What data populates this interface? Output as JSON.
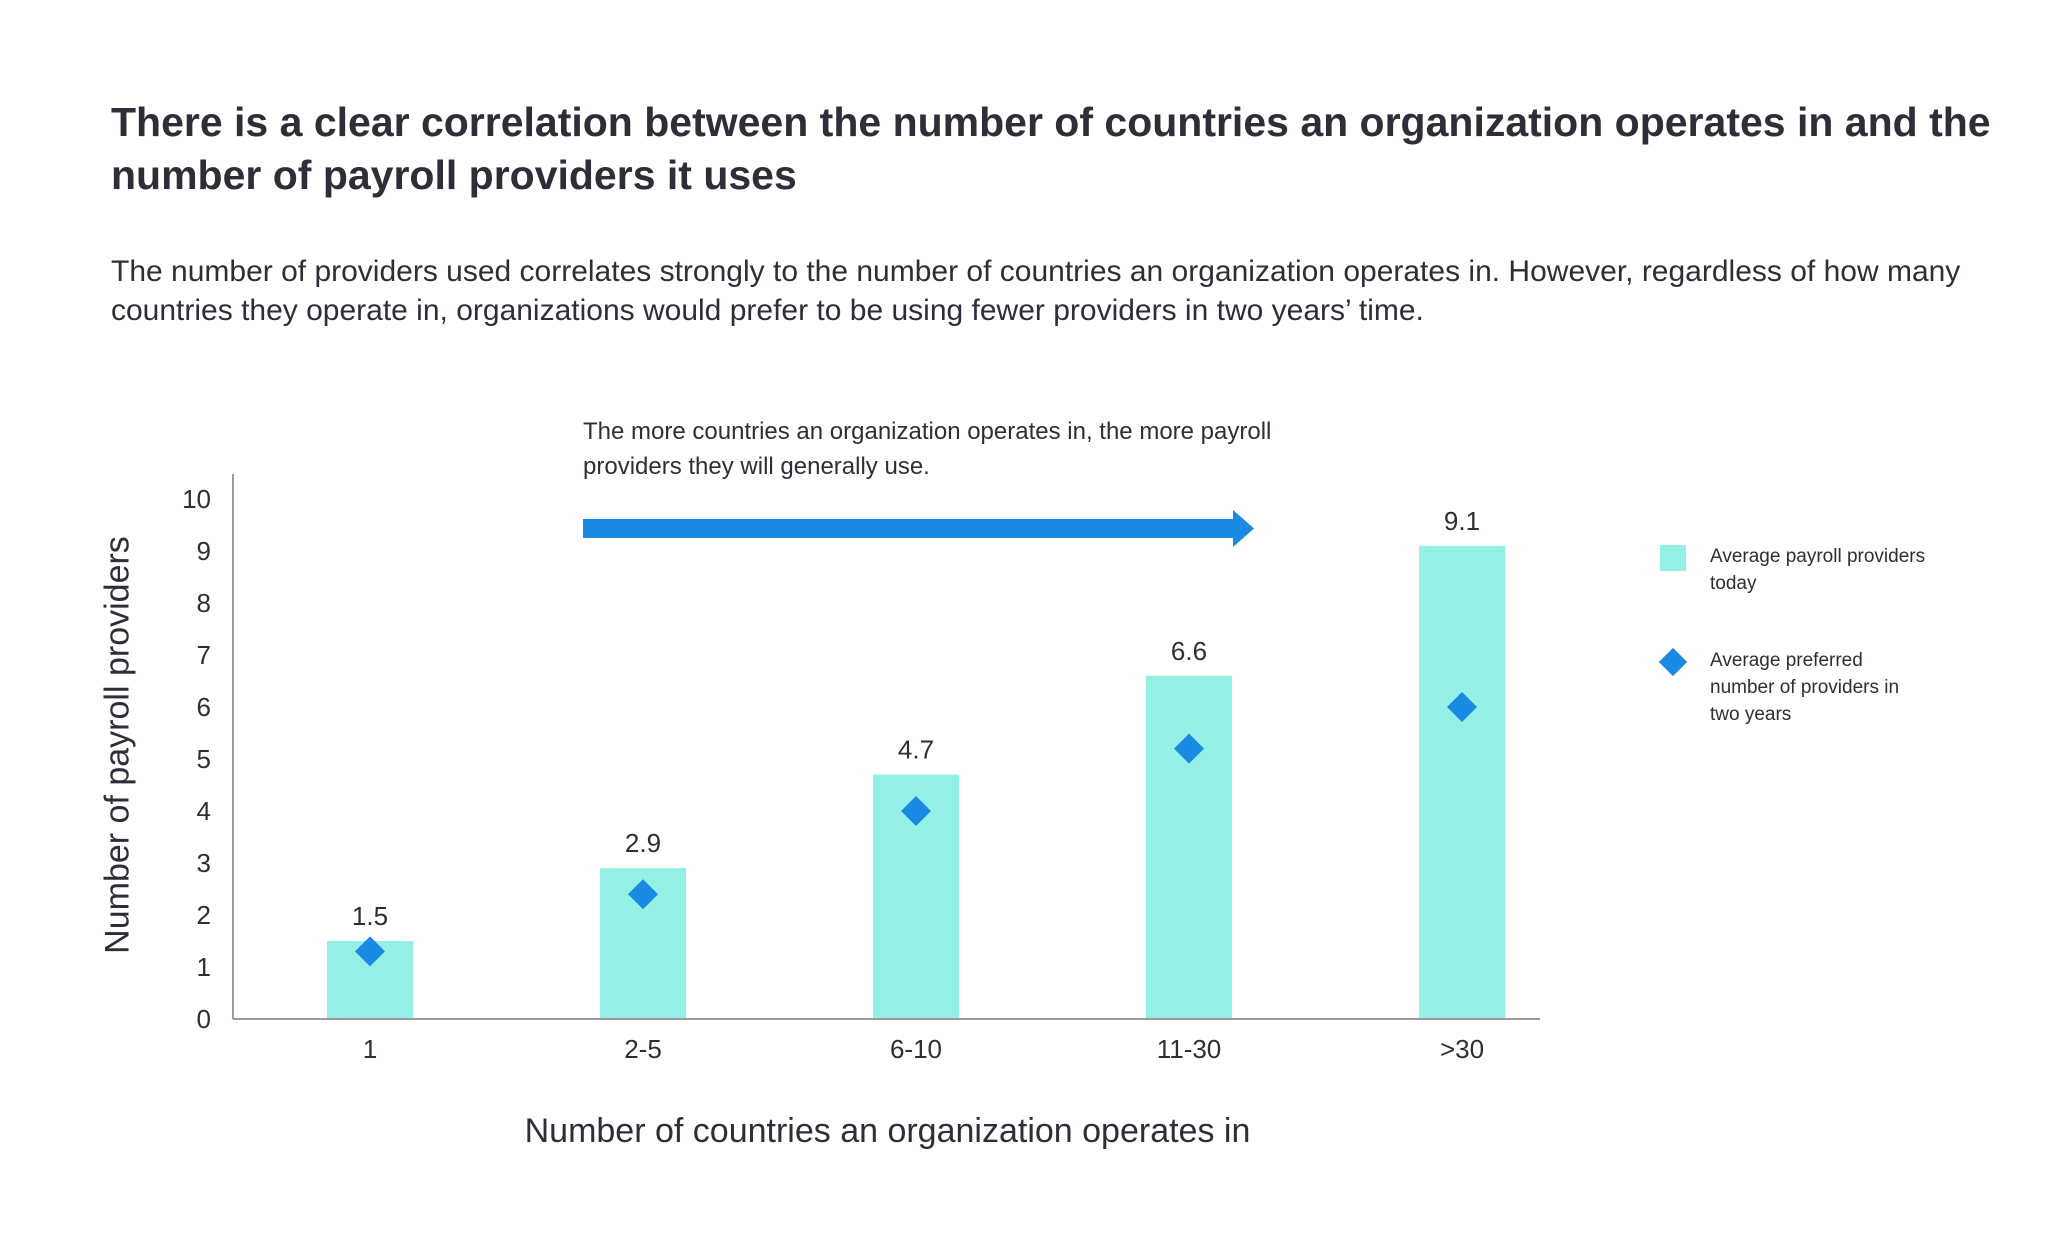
{
  "header": {
    "title": "There is a clear correlation between the number of countries an organization operates in and the number of payroll providers it uses",
    "subtitle": "The number of providers used correlates strongly to the number of countries an organization operates in. However, regardless of how many countries they operate in, organizations would prefer to be using fewer providers in two years’ time."
  },
  "annotation": {
    "text": "The more countries an organization operates in, the more payroll providers they will generally use."
  },
  "chart_data": {
    "type": "bar",
    "xlabel": "Number of countries an organization operates in",
    "ylabel": "Number of payroll providers",
    "categories": [
      "1",
      "2-5",
      "6-10",
      "11-30",
      ">30"
    ],
    "ylim": [
      0,
      10
    ],
    "yticks": [
      0,
      1,
      2,
      3,
      4,
      5,
      6,
      7,
      8,
      9,
      10
    ],
    "grid": false,
    "legend_position": "right",
    "series": [
      {
        "name": "Average payroll providers today",
        "kind": "bar",
        "values": [
          1.5,
          2.9,
          4.7,
          6.6,
          9.1
        ],
        "value_labels": [
          "1.5",
          "2.9",
          "4.7",
          "6.6",
          "9.1"
        ],
        "color": "#94efe5"
      },
      {
        "name": "Average preferred number of providers in two years",
        "kind": "marker",
        "marker": "diamond",
        "values": [
          1.3,
          2.4,
          4.0,
          5.2,
          6.0
        ],
        "color": "#1a8ae2"
      }
    ]
  },
  "colors": {
    "text": "#2e2e38",
    "axis": "#9a9aa3",
    "arrow": "#1a8ae2"
  }
}
